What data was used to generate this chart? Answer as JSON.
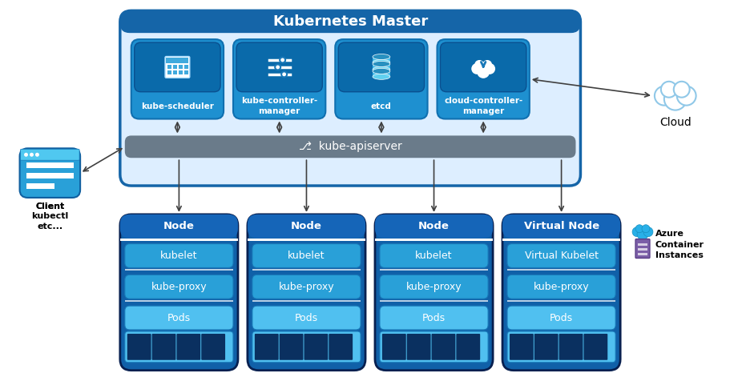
{
  "title": "Kubernetes Master",
  "master_components": [
    "kube-scheduler",
    "kube-controller-\nmanager",
    "etcd",
    "cloud-controller-\nmanager"
  ],
  "nodes": [
    "Node",
    "Node",
    "Node",
    "Virtual Node"
  ],
  "node_rows": [
    [
      "kubelet",
      "kube-proxy",
      "Pods"
    ],
    [
      "kubelet",
      "kube-proxy",
      "Pods"
    ],
    [
      "kubelet",
      "kube-proxy",
      "Pods"
    ],
    [
      "Virtual Kubelet",
      "kube-proxy",
      "Pods"
    ]
  ],
  "client_label": "Client\nkubectl\netc...",
  "cloud_label": "Cloud",
  "azure_label": "Azure\nContainer\nInstances",
  "apiserver_label": "kube-apiserver",
  "colors": {
    "white": "#ffffff",
    "master_bg": "#ddeeff",
    "master_border": "#1565a8",
    "master_header": "#1565a8",
    "apiserver_bg": "#6a7b8a",
    "comp_box": "#1e90d0",
    "comp_icon_bg": "#0a6aaa",
    "node_outer": "#1060a8",
    "node_header": "#1565b8",
    "node_row_bg": "#29a0d8",
    "node_row_light": "#50c0f0",
    "pod_dark": "#0a3060",
    "arrow_color": "#404040",
    "cloud_outline": "#90c8e8",
    "azure_purple": "#7B5EA7",
    "azure_cloud": "#29a0d8",
    "client_bg": "#29a0d8"
  },
  "figsize": [
    9.21,
    4.76
  ],
  "dpi": 100
}
